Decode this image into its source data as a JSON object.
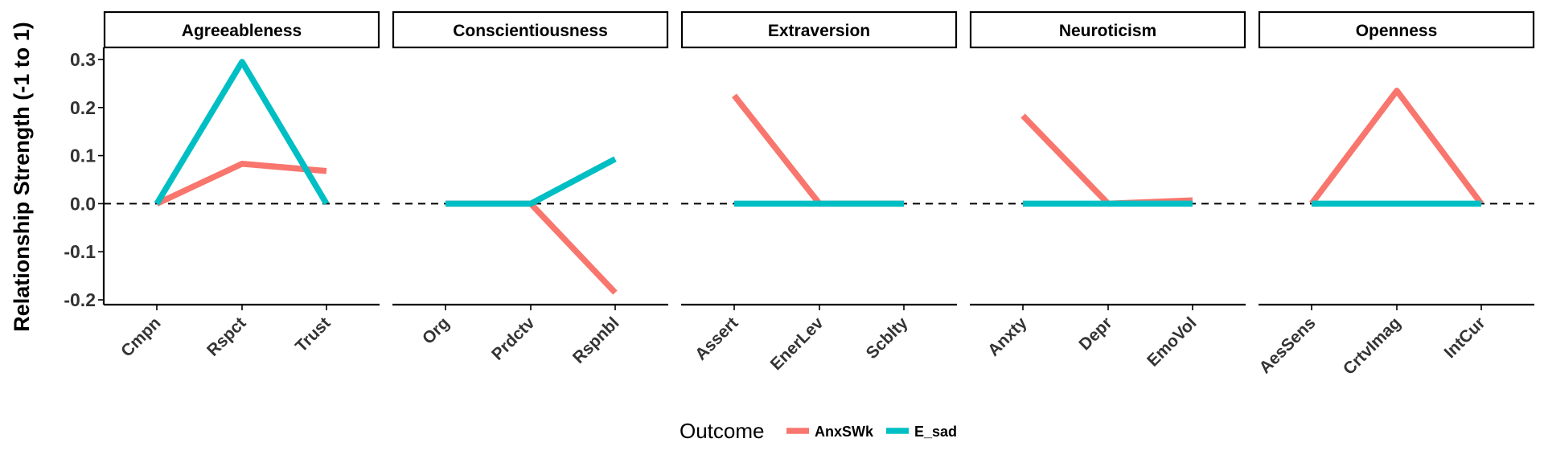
{
  "chart_data": {
    "type": "line",
    "ylabel": "Relationship Strength (-1 to 1)",
    "xlabel": "",
    "ylim": [
      -0.21,
      0.32
    ],
    "yticks": [
      0.3,
      0.2,
      0.1,
      0.0,
      -0.1,
      -0.2
    ],
    "ytick_labels": [
      "0.3",
      "0.2",
      "0.1",
      "0.0",
      "-0.1",
      "-0.2"
    ],
    "reference_line": 0,
    "legend": {
      "title": "Outcome",
      "position": "bottom",
      "entries": [
        {
          "label": "AnxSWk",
          "color": "#F8766D"
        },
        {
          "label": "E_sad",
          "color": "#00BFC4"
        }
      ]
    },
    "facets": [
      {
        "title": "Agreeableness",
        "categories": [
          "Cmpn",
          "Rspct",
          "Trust"
        ],
        "series": [
          {
            "name": "AnxSWk",
            "color": "#F8766D",
            "values": [
              0.0,
              0.083,
              0.068
            ]
          },
          {
            "name": "E_sad",
            "color": "#00BFC4",
            "values": [
              0.0,
              0.295,
              0.0
            ]
          }
        ]
      },
      {
        "title": "Conscientiousness",
        "categories": [
          "Org",
          "Prdctv",
          "Rspnbl"
        ],
        "series": [
          {
            "name": "AnxSWk",
            "color": "#F8766D",
            "values": [
              0.0,
              0.0,
              -0.185
            ]
          },
          {
            "name": "E_sad",
            "color": "#00BFC4",
            "values": [
              0.0,
              0.0,
              0.093
            ]
          }
        ]
      },
      {
        "title": "Extraversion",
        "categories": [
          "Assert",
          "EnerLev",
          "Scblty"
        ],
        "series": [
          {
            "name": "AnxSWk",
            "color": "#F8766D",
            "values": [
              0.225,
              0.0,
              0.0
            ]
          },
          {
            "name": "E_sad",
            "color": "#00BFC4",
            "values": [
              0.0,
              0.0,
              0.0
            ]
          }
        ]
      },
      {
        "title": "Neuroticism",
        "categories": [
          "Anxty",
          "Depr",
          "EmoVol"
        ],
        "series": [
          {
            "name": "AnxSWk",
            "color": "#F8766D",
            "values": [
              0.183,
              0.0,
              0.007
            ]
          },
          {
            "name": "E_sad",
            "color": "#00BFC4",
            "values": [
              0.0,
              0.0,
              0.0
            ]
          }
        ]
      },
      {
        "title": "Openness",
        "categories": [
          "AesSens",
          "CrtvImag",
          "IntCur"
        ],
        "series": [
          {
            "name": "AnxSWk",
            "color": "#F8766D",
            "values": [
              0.0,
              0.235,
              0.0
            ]
          },
          {
            "name": "E_sad",
            "color": "#00BFC4",
            "values": [
              0.0,
              0.0,
              0.0
            ]
          }
        ]
      }
    ]
  }
}
